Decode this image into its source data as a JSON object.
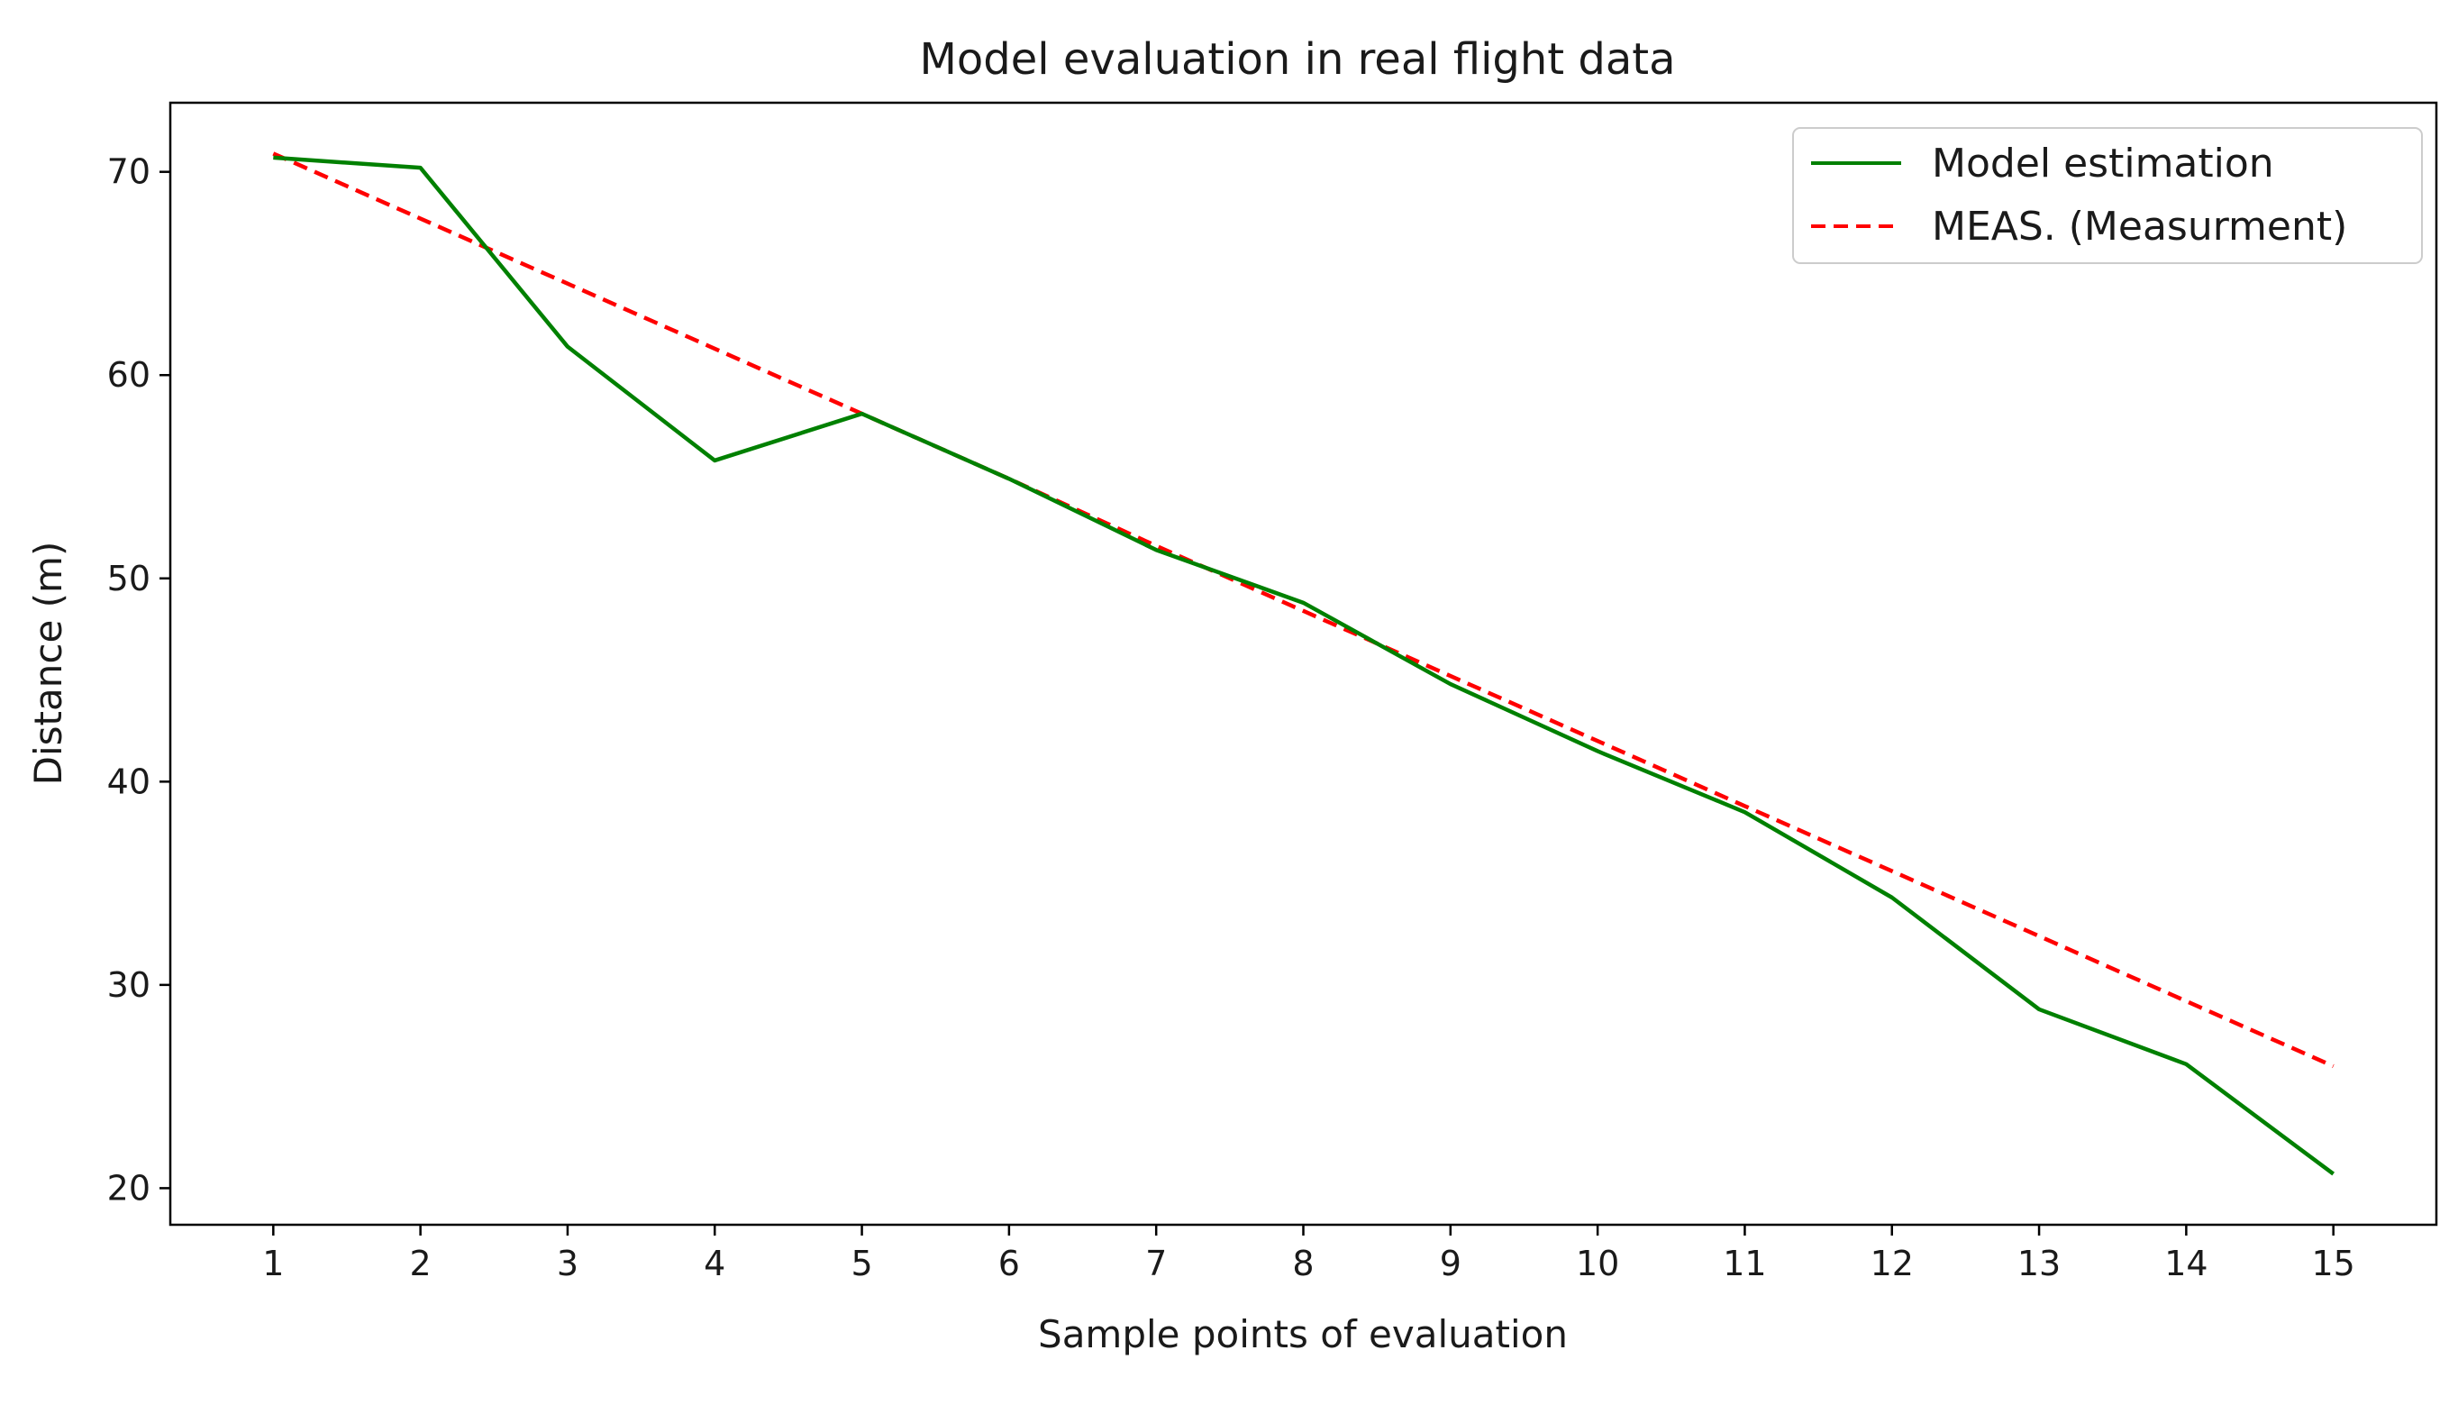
{
  "chart_data": {
    "type": "line",
    "title": "Model evaluation in real flight data",
    "xlabel": "Sample points of evaluation",
    "ylabel": "Distance (m)",
    "x": [
      1,
      2,
      3,
      4,
      5,
      6,
      7,
      8,
      9,
      10,
      11,
      12,
      13,
      14,
      15
    ],
    "xticks": [
      1,
      2,
      3,
      4,
      5,
      6,
      7,
      8,
      9,
      10,
      11,
      12,
      13,
      14,
      15
    ],
    "yticks": [
      20,
      30,
      40,
      50,
      60,
      70
    ],
    "xlim": [
      0.3,
      15.7
    ],
    "ylim": [
      18.2,
      73.4
    ],
    "grid": false,
    "legend_position": "top-right",
    "series": [
      {
        "name": "Model estimation",
        "color": "#008000",
        "style": "solid",
        "values": [
          70.7,
          70.2,
          61.4,
          55.8,
          58.1,
          54.9,
          51.4,
          48.8,
          44.8,
          41.5,
          38.5,
          34.3,
          28.8,
          26.1,
          20.7
        ]
      },
      {
        "name": "MEAS. (Measurment)",
        "color": "#ff0000",
        "style": "dashed",
        "values": [
          70.9,
          67.7,
          64.5,
          61.3,
          58.1,
          54.9,
          51.6,
          48.4,
          45.2,
          42.0,
          38.8,
          35.6,
          32.4,
          29.2,
          26.0
        ]
      }
    ]
  }
}
